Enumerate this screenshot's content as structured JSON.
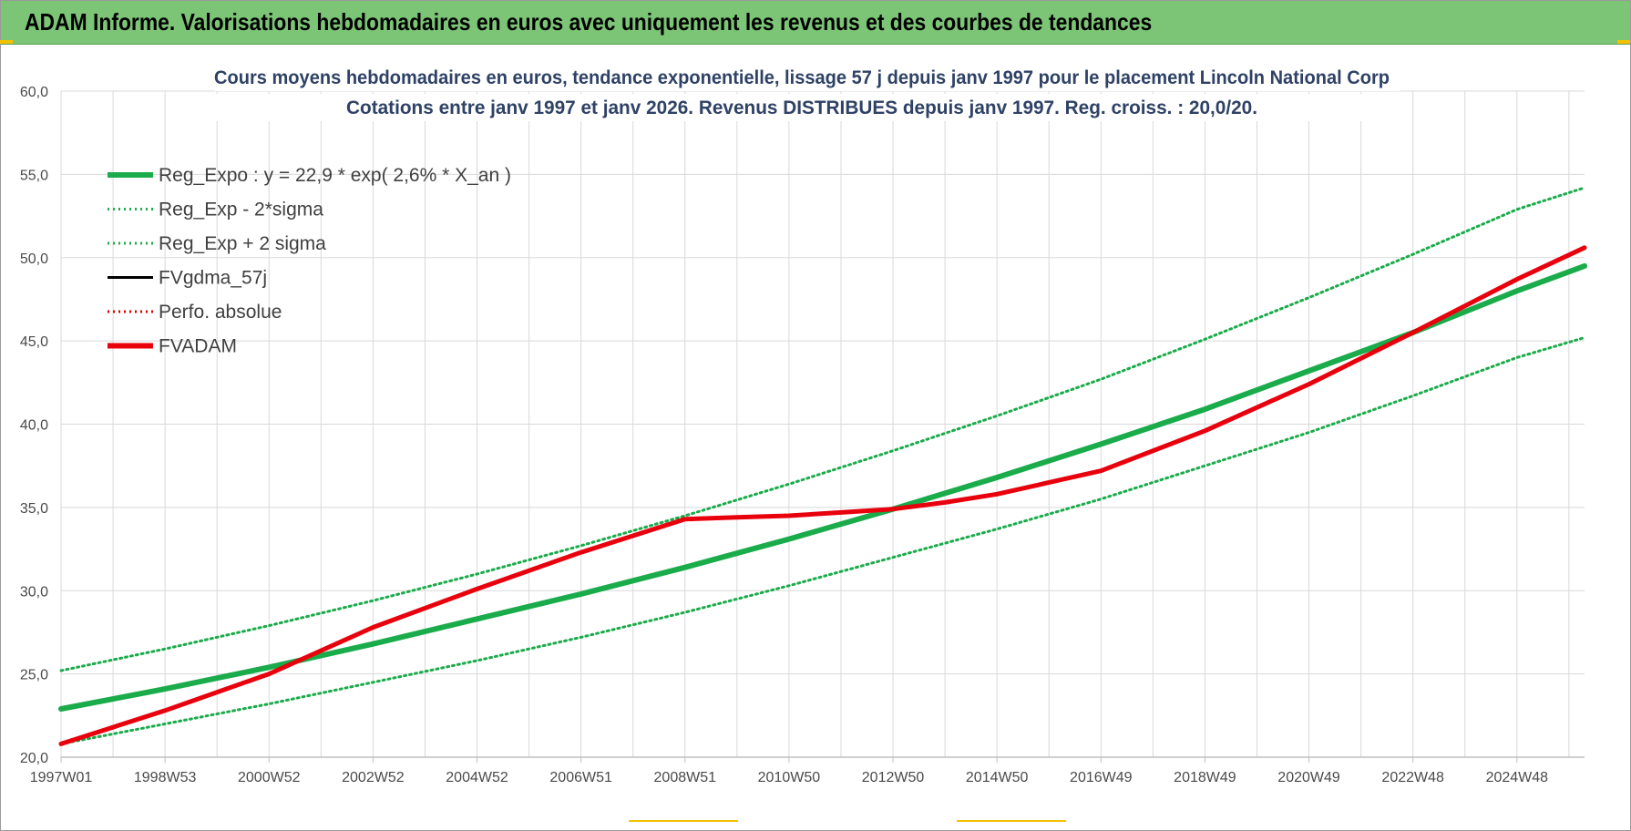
{
  "banner": {
    "title": "ADAM Informe. Valorisations hebdomadaires en euros avec uniquement les revenus et des courbes de tendances",
    "background": "#7cc576"
  },
  "colors": {
    "trend": "#1aab4a",
    "band": "#1aab4a",
    "fvgdma": "#000000",
    "perfo": "#e00000",
    "fvadam": "#e8000c",
    "grid": "#d9d9d9",
    "title": "#2f4266"
  },
  "chart_data": {
    "type": "line",
    "title_lines": [
      "Cours moyens hebdomadaires en euros, tendance exponentielle, lissage 57 j depuis janv 1997  pour le placement Lincoln National Corp",
      "Cotations entre janv 1997 et janv 2026. Revenus DISTRIBUES depuis janv 1997. Reg. croiss. : 20,0/20."
    ],
    "xlabel": "",
    "ylabel": "",
    "ylim": [
      20,
      60
    ],
    "y_ticks": [
      "20,0",
      "25,0",
      "30,0",
      "35,0",
      "40,0",
      "45,0",
      "50,0",
      "55,0",
      "60,0"
    ],
    "x_range_years": [
      1997.0,
      2026.3
    ],
    "x_tick_labels": [
      "1997W01",
      "1998W53",
      "2000W52",
      "2002W52",
      "2004W52",
      "2006W51",
      "2008W51",
      "2010W50",
      "2012W50",
      "2014W50",
      "2016W49",
      "2018W49",
      "2020W49",
      "2022W48",
      "2024W48"
    ],
    "x_tick_years": [
      1997.0,
      1999.0,
      2001.0,
      2003.0,
      2005.0,
      2007.0,
      2009.0,
      2011.0,
      2013.0,
      2015.0,
      2017.0,
      2019.0,
      2021.0,
      2023.0,
      2025.0
    ],
    "grid": true,
    "legend_position": "top-left",
    "legend": [
      {
        "label": "Reg_Expo : y = 22,9 * exp( 2,6% *  X_an )",
        "style": "solid-thick",
        "color": "#1aab4a"
      },
      {
        "label": "Reg_Exp - 2*sigma",
        "style": "dotted",
        "color": "#1aab4a"
      },
      {
        "label": "Reg_Exp + 2 sigma",
        "style": "dotted",
        "color": "#1aab4a"
      },
      {
        "label": "FVgdma_57j",
        "style": "solid",
        "color": "#000000"
      },
      {
        "label": "Perfo. absolue",
        "style": "dotted",
        "color": "#e00000"
      },
      {
        "label": "FVADAM",
        "style": "solid-thick",
        "color": "#e8000c"
      }
    ],
    "series": [
      {
        "name": "Reg_Expo : y = 22,9 * exp( 2,6% *  X_an )",
        "x": [
          1997.0,
          1999.0,
          2001.0,
          2003.0,
          2005.0,
          2007.0,
          2009.0,
          2011.0,
          2013.0,
          2015.0,
          2017.0,
          2019.0,
          2021.0,
          2023.0,
          2025.0,
          2026.3
        ],
        "y": [
          22.9,
          24.1,
          25.4,
          26.8,
          28.3,
          29.8,
          31.4,
          33.1,
          34.9,
          36.8,
          38.8,
          40.9,
          43.2,
          45.5,
          48.0,
          49.5
        ]
      },
      {
        "name": "Reg_Exp - 2*sigma",
        "x": [
          1997.0,
          1999.0,
          2001.0,
          2003.0,
          2005.0,
          2007.0,
          2009.0,
          2011.0,
          2013.0,
          2015.0,
          2017.0,
          2019.0,
          2021.0,
          2023.0,
          2025.0,
          2026.3
        ],
        "y": [
          20.8,
          22.0,
          23.2,
          24.5,
          25.8,
          27.2,
          28.7,
          30.3,
          32.0,
          33.7,
          35.5,
          37.5,
          39.5,
          41.7,
          44.0,
          45.2
        ]
      },
      {
        "name": "Reg_Exp + 2 sigma",
        "x": [
          1997.0,
          1999.0,
          2001.0,
          2003.0,
          2005.0,
          2007.0,
          2009.0,
          2011.0,
          2013.0,
          2015.0,
          2017.0,
          2019.0,
          2021.0,
          2023.0,
          2025.0,
          2026.3
        ],
        "y": [
          25.2,
          26.5,
          27.9,
          29.4,
          31.0,
          32.7,
          34.5,
          36.4,
          38.4,
          40.5,
          42.7,
          45.1,
          47.6,
          50.2,
          52.9,
          54.2
        ]
      },
      {
        "name": "FVADAM",
        "x": [
          1997.0,
          1999.0,
          2001.0,
          2003.0,
          2005.0,
          2007.0,
          2009.0,
          2010.0,
          2011.0,
          2012.0,
          2013.0,
          2014.0,
          2015.0,
          2017.0,
          2019.0,
          2021.0,
          2023.0,
          2025.0,
          2026.3
        ],
        "y": [
          20.8,
          22.8,
          25.0,
          27.8,
          30.1,
          32.3,
          34.3,
          34.4,
          34.5,
          34.7,
          34.9,
          35.3,
          35.8,
          37.2,
          39.6,
          42.4,
          45.5,
          48.7,
          50.6
        ]
      }
    ]
  }
}
